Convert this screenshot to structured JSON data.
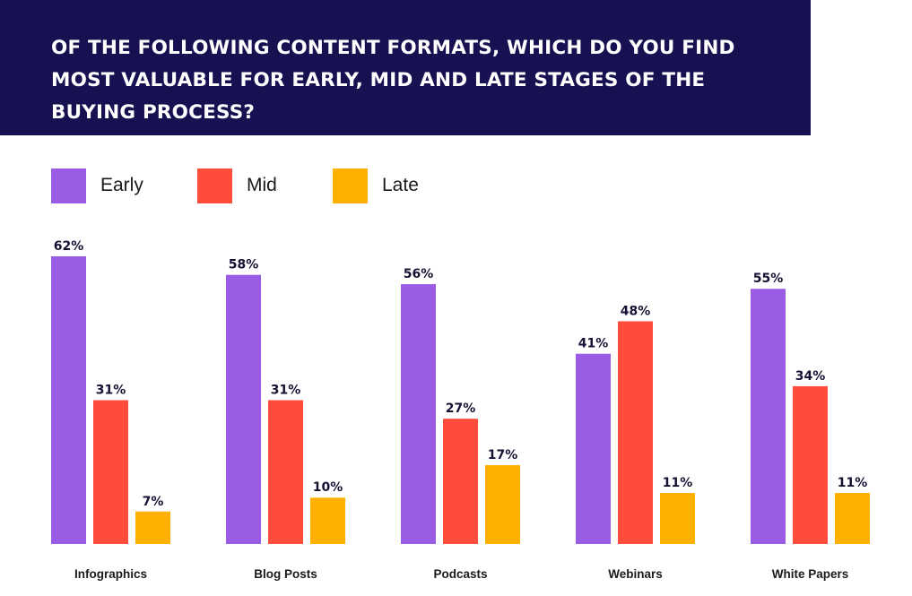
{
  "header": {
    "title": "Of the following content formats, which do you find most valuable for early, mid and late stages of the buying process?"
  },
  "legend": [
    {
      "label": "Early",
      "color": "#9A5CE4"
    },
    {
      "label": "Mid",
      "color": "#FF4B3A"
    },
    {
      "label": "Late",
      "color": "#FFB000"
    }
  ],
  "chart_data": {
    "type": "bar",
    "title": "Of the following content formats, which do you find most valuable for early, mid and late stages of the buying process?",
    "categories": [
      "Infographics",
      "Blog Posts",
      "Podcasts",
      "Webinars",
      "White Papers"
    ],
    "series": [
      {
        "name": "Early",
        "values": [
          62,
          58,
          56,
          41,
          55
        ],
        "color": "#9A5CE4"
      },
      {
        "name": "Mid",
        "values": [
          31,
          31,
          27,
          48,
          34
        ],
        "color": "#FF4B3A"
      },
      {
        "name": "Late",
        "values": [
          7,
          10,
          17,
          11,
          11
        ],
        "color": "#FFB000"
      }
    ],
    "value_suffix": "%",
    "ylim": [
      0,
      62
    ],
    "grid": false,
    "legend_position": "top-left"
  }
}
